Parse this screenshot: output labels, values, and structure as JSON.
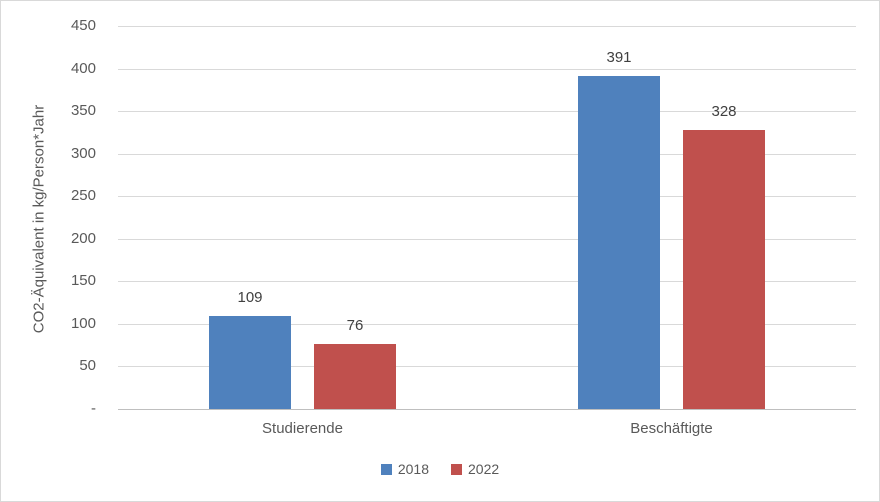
{
  "chart_data": {
    "type": "bar",
    "categories": [
      "Studierende",
      "Beschäftigte"
    ],
    "series": [
      {
        "name": "2018",
        "color": "#4F81BD",
        "values": [
          109,
          391
        ]
      },
      {
        "name": "2022",
        "color": "#C0504D",
        "values": [
          76,
          328
        ]
      }
    ],
    "ylabel": "CO2-Äquivalent in kg/Person*Jahr",
    "ylim": [
      0,
      450
    ],
    "ytick_step": 50,
    "ytick_labels": [
      "-",
      "50",
      "100",
      "150",
      "200",
      "250",
      "300",
      "350",
      "400",
      "450"
    ],
    "grid": true,
    "legend_position": "bottom"
  }
}
